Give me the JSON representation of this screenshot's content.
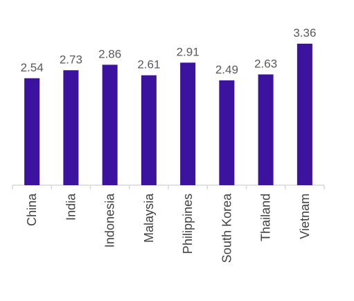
{
  "chart_data": {
    "type": "bar",
    "categories": [
      "China",
      "India",
      "Indonesia",
      "Malaysia",
      "Philippines",
      "South Korea",
      "Thailand",
      "Vietnam"
    ],
    "values": [
      2.54,
      2.73,
      2.86,
      2.61,
      2.91,
      2.49,
      2.63,
      3.36
    ],
    "data_labels": [
      "2.54",
      "2.73",
      "2.86",
      "2.61",
      "2.91",
      "2.49",
      "2.63",
      "3.36"
    ],
    "ylim": [
      0,
      3.36
    ],
    "bar_color": "#3b139e",
    "grid": false,
    "legend": "none"
  }
}
